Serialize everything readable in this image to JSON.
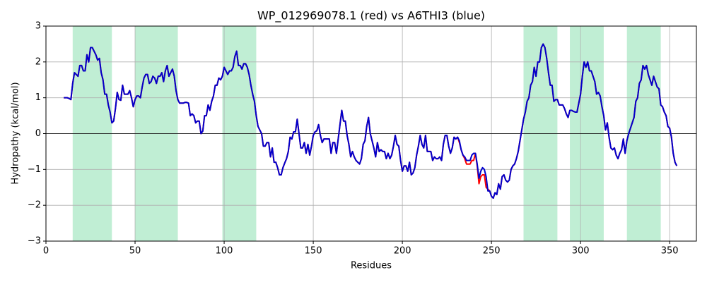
{
  "chart_data": {
    "type": "line",
    "title": "WP_012969078.1 (red) vs A6THI3 (blue)",
    "xlabel": "Residues",
    "ylabel": "Hydropathy (kcal/mol)",
    "xlim": [
      0,
      365
    ],
    "ylim": [
      -3,
      3
    ],
    "xticks": [
      0,
      50,
      100,
      150,
      200,
      250,
      300,
      350
    ],
    "yticks": [
      {
        "value": -3,
        "label": "−3"
      },
      {
        "value": -2,
        "label": "−2"
      },
      {
        "value": -1,
        "label": "−1"
      },
      0,
      1,
      2,
      3
    ],
    "grid": true,
    "hline": 0,
    "shaded_regions": [
      [
        15,
        37
      ],
      [
        50,
        74
      ],
      [
        99,
        118
      ],
      [
        268,
        287
      ],
      [
        294,
        313
      ],
      [
        326,
        345
      ]
    ],
    "shade_color": "#c0eed4",
    "x": [
      10,
      11,
      12,
      13,
      14,
      15,
      16,
      17,
      18,
      19,
      20,
      21,
      22,
      23,
      24,
      25,
      26,
      27,
      28,
      29,
      30,
      31,
      32,
      33,
      34,
      35,
      36,
      37,
      38,
      39,
      40,
      41,
      42,
      43,
      44,
      45,
      46,
      47,
      48,
      49,
      50,
      51,
      52,
      53,
      54,
      55,
      56,
      57,
      58,
      59,
      60,
      61,
      62,
      63,
      64,
      65,
      66,
      67,
      68,
      69,
      70,
      71,
      72,
      73,
      74,
      75,
      76,
      77,
      78,
      79,
      80,
      81,
      82,
      83,
      84,
      85,
      86,
      87,
      88,
      89,
      90,
      91,
      92,
      93,
      94,
      95,
      96,
      97,
      98,
      99,
      100,
      101,
      102,
      103,
      104,
      105,
      106,
      107,
      108,
      109,
      110,
      111,
      112,
      113,
      114,
      115,
      116,
      117,
      118,
      119,
      120,
      121,
      122,
      123,
      124,
      125,
      126,
      127,
      128,
      129,
      130,
      131,
      132,
      133,
      134,
      135,
      136,
      137,
      138,
      139,
      140,
      141,
      142,
      143,
      144,
      145,
      146,
      147,
      148,
      149,
      150,
      151,
      152,
      153,
      154,
      155,
      156,
      157,
      158,
      159,
      160,
      161,
      162,
      163,
      164,
      165,
      166,
      167,
      168,
      169,
      170,
      171,
      172,
      173,
      174,
      175,
      176,
      177,
      178,
      179,
      180,
      181,
      182,
      183,
      184,
      185,
      186,
      187,
      188,
      189,
      190,
      191,
      192,
      193,
      194,
      195,
      196,
      197,
      198,
      199,
      200,
      201,
      202,
      203,
      204,
      205,
      206,
      207,
      208,
      209,
      210,
      211,
      212,
      213,
      214,
      215,
      216,
      217,
      218,
      219,
      220,
      221,
      222,
      223,
      224,
      225,
      226,
      227,
      228,
      229,
      230,
      231,
      232,
      233,
      234,
      235,
      236,
      237,
      238,
      239,
      240,
      241,
      242,
      243,
      244,
      245,
      246,
      247,
      248,
      249,
      250,
      251,
      252,
      253,
      254,
      255,
      256,
      257,
      258,
      259,
      260,
      261,
      262,
      263,
      264,
      265,
      266,
      267,
      268,
      269,
      270,
      271,
      272,
      273,
      274,
      275,
      276,
      277,
      278,
      279,
      280,
      281,
      282,
      283,
      284,
      285,
      286,
      287,
      288,
      289,
      290,
      291,
      292,
      293,
      294,
      295,
      296,
      297,
      298,
      299,
      300,
      301,
      302,
      303,
      304,
      305,
      306,
      307,
      308,
      309,
      310,
      311,
      312,
      313,
      314,
      315,
      316,
      317,
      318,
      319,
      320,
      321,
      322,
      323,
      324,
      325,
      326,
      327,
      328,
      329,
      330,
      331,
      332,
      333,
      334,
      335,
      336,
      337,
      338,
      339,
      340,
      341,
      342,
      343,
      344,
      345,
      346,
      347,
      348,
      349,
      350,
      351,
      352,
      353,
      354
    ],
    "series": [
      {
        "color": "#ff0000",
        "values": [
          1.0,
          1.0,
          1.0,
          0.98,
          0.95,
          1.4,
          1.7,
          1.65,
          1.6,
          1.9,
          1.9,
          1.75,
          1.75,
          2.2,
          2.0,
          2.4,
          2.4,
          2.3,
          2.2,
          2.05,
          2.1,
          1.7,
          1.5,
          1.1,
          1.1,
          0.8,
          0.6,
          0.3,
          0.35,
          0.7,
          1.15,
          0.95,
          0.93,
          1.35,
          1.1,
          1.1,
          1.1,
          1.2,
          1.0,
          0.75,
          0.95,
          1.05,
          1.05,
          1.0,
          1.3,
          1.55,
          1.65,
          1.65,
          1.4,
          1.45,
          1.6,
          1.55,
          1.4,
          1.6,
          1.6,
          1.7,
          1.45,
          1.75,
          1.9,
          1.6,
          1.7,
          1.8,
          1.6,
          1.2,
          0.95,
          0.85,
          0.85,
          0.85,
          0.87,
          0.87,
          0.85,
          0.5,
          0.55,
          0.5,
          0.3,
          0.35,
          0.35,
          0.0,
          0.07,
          0.5,
          0.5,
          0.8,
          0.65,
          0.9,
          1.05,
          1.35,
          1.35,
          1.55,
          1.5,
          1.6,
          1.85,
          1.75,
          1.65,
          1.75,
          1.75,
          1.85,
          2.15,
          2.3,
          1.9,
          1.9,
          1.8,
          1.95,
          1.95,
          1.85,
          1.65,
          1.35,
          1.1,
          0.9,
          0.5,
          0.2,
          0.1,
          0.0,
          -0.35,
          -0.35,
          -0.25,
          -0.25,
          -0.65,
          -0.4,
          -0.8,
          -0.8,
          -0.95,
          -1.15,
          -1.15,
          -0.95,
          -0.82,
          -0.7,
          -0.5,
          -0.1,
          -0.15,
          0.05,
          0.05,
          0.4,
          0.0,
          -0.4,
          -0.4,
          -0.25,
          -0.55,
          -0.3,
          -0.6,
          -0.35,
          -0.05,
          0.05,
          0.08,
          0.25,
          -0.05,
          -0.25,
          -0.15,
          -0.15,
          -0.15,
          -0.15,
          -0.55,
          -0.25,
          -0.25,
          -0.55,
          -0.15,
          0.25,
          0.65,
          0.35,
          0.35,
          -0.05,
          -0.3,
          -0.65,
          -0.5,
          -0.65,
          -0.75,
          -0.8,
          -0.85,
          -0.7,
          -0.3,
          -0.2,
          0.2,
          0.45,
          0.0,
          -0.2,
          -0.4,
          -0.65,
          -0.25,
          -0.5,
          -0.45,
          -0.5,
          -0.5,
          -0.7,
          -0.55,
          -0.7,
          -0.6,
          -0.35,
          -0.05,
          -0.3,
          -0.35,
          -0.75,
          -1.05,
          -0.9,
          -0.9,
          -1.05,
          -0.8,
          -1.15,
          -1.1,
          -0.95,
          -0.6,
          -0.35,
          -0.05,
          -0.3,
          -0.4,
          -0.05,
          -0.5,
          -0.5,
          -0.5,
          -0.75,
          -0.65,
          -0.7,
          -0.7,
          -0.65,
          -0.75,
          -0.3,
          -0.05,
          -0.05,
          -0.35,
          -0.55,
          -0.4,
          -0.1,
          -0.15,
          -0.1,
          -0.25,
          -0.45,
          -0.6,
          -0.7,
          -0.85,
          -0.85,
          -0.85,
          -0.75,
          -0.75,
          -0.55,
          -0.9,
          -1.4,
          -1.2,
          -1.15,
          -1.15,
          -1.5,
          -1.55,
          -1.6,
          -1.75,
          -1.8,
          -1.65,
          -1.7,
          -1.4,
          -1.55,
          -1.2,
          -1.15,
          -1.3,
          -1.35,
          -1.3,
          -1.0,
          -0.9,
          -0.85,
          -0.7,
          -0.5,
          -0.2,
          0.1,
          0.4,
          0.6,
          0.9,
          1.0,
          1.35,
          1.45,
          1.85,
          1.6,
          2.0,
          2.0,
          2.4,
          2.5,
          2.4,
          2.1,
          1.7,
          1.35,
          1.35,
          0.9,
          0.95,
          0.95,
          0.8,
          0.8,
          0.8,
          0.7,
          0.55,
          0.45,
          0.65,
          0.65,
          0.62,
          0.6,
          0.6,
          0.85,
          1.1,
          1.6,
          2.0,
          1.85,
          2.0,
          1.75,
          1.75,
          1.6,
          1.45,
          1.1,
          1.15,
          1.05,
          0.75,
          0.5,
          0.1,
          0.3,
          -0.1,
          -0.4,
          -0.45,
          -0.4,
          -0.6,
          -0.7,
          -0.55,
          -0.45,
          -0.15,
          -0.55,
          -0.2,
          0.0,
          0.15,
          0.3,
          0.45,
          0.9,
          1.0,
          1.4,
          1.5,
          1.9,
          1.8,
          1.9,
          1.65,
          1.5,
          1.35,
          1.6,
          1.45,
          1.3,
          1.25,
          0.8,
          0.75,
          0.6,
          0.5,
          0.2,
          0.15,
          -0.1,
          -0.55,
          -0.8,
          -0.9
        ]
      },
      {
        "color": "#0000cc",
        "values": [
          1.0,
          1.0,
          1.0,
          0.98,
          0.95,
          1.4,
          1.7,
          1.65,
          1.6,
          1.9,
          1.9,
          1.75,
          1.75,
          2.2,
          2.0,
          2.4,
          2.4,
          2.3,
          2.2,
          2.05,
          2.1,
          1.7,
          1.5,
          1.1,
          1.1,
          0.8,
          0.6,
          0.3,
          0.35,
          0.7,
          1.15,
          0.95,
          0.93,
          1.35,
          1.1,
          1.1,
          1.1,
          1.2,
          1.0,
          0.75,
          0.95,
          1.05,
          1.05,
          1.0,
          1.3,
          1.55,
          1.65,
          1.65,
          1.4,
          1.45,
          1.6,
          1.55,
          1.4,
          1.6,
          1.6,
          1.7,
          1.45,
          1.75,
          1.9,
          1.6,
          1.7,
          1.8,
          1.6,
          1.2,
          0.95,
          0.85,
          0.85,
          0.85,
          0.87,
          0.87,
          0.85,
          0.5,
          0.55,
          0.5,
          0.3,
          0.35,
          0.35,
          0.0,
          0.07,
          0.5,
          0.5,
          0.8,
          0.65,
          0.9,
          1.05,
          1.35,
          1.35,
          1.55,
          1.5,
          1.6,
          1.85,
          1.75,
          1.65,
          1.75,
          1.75,
          1.85,
          2.15,
          2.3,
          1.9,
          1.9,
          1.8,
          1.95,
          1.95,
          1.85,
          1.65,
          1.35,
          1.1,
          0.9,
          0.5,
          0.2,
          0.1,
          0.0,
          -0.35,
          -0.35,
          -0.25,
          -0.25,
          -0.65,
          -0.4,
          -0.8,
          -0.8,
          -0.95,
          -1.15,
          -1.15,
          -0.95,
          -0.82,
          -0.7,
          -0.5,
          -0.1,
          -0.15,
          0.05,
          0.05,
          0.4,
          0.0,
          -0.4,
          -0.4,
          -0.25,
          -0.55,
          -0.3,
          -0.6,
          -0.35,
          -0.05,
          0.05,
          0.08,
          0.25,
          -0.05,
          -0.25,
          -0.15,
          -0.15,
          -0.15,
          -0.15,
          -0.55,
          -0.25,
          -0.25,
          -0.55,
          -0.15,
          0.25,
          0.65,
          0.35,
          0.35,
          -0.05,
          -0.3,
          -0.65,
          -0.5,
          -0.65,
          -0.75,
          -0.8,
          -0.85,
          -0.7,
          -0.3,
          -0.2,
          0.2,
          0.45,
          0.0,
          -0.2,
          -0.4,
          -0.65,
          -0.25,
          -0.5,
          -0.45,
          -0.5,
          -0.5,
          -0.7,
          -0.55,
          -0.7,
          -0.6,
          -0.35,
          -0.05,
          -0.3,
          -0.35,
          -0.75,
          -1.05,
          -0.9,
          -0.9,
          -1.05,
          -0.8,
          -1.15,
          -1.1,
          -0.95,
          -0.6,
          -0.35,
          -0.05,
          -0.3,
          -0.4,
          -0.05,
          -0.5,
          -0.5,
          -0.5,
          -0.75,
          -0.65,
          -0.7,
          -0.7,
          -0.65,
          -0.75,
          -0.3,
          -0.05,
          -0.05,
          -0.35,
          -0.55,
          -0.4,
          -0.1,
          -0.15,
          -0.1,
          -0.2,
          -0.45,
          -0.6,
          -0.65,
          -0.75,
          -0.75,
          -0.75,
          -0.6,
          -0.55,
          -0.55,
          -0.85,
          -1.25,
          -1.05,
          -0.95,
          -1.0,
          -1.2,
          -1.6,
          -1.6,
          -1.75,
          -1.8,
          -1.65,
          -1.7,
          -1.4,
          -1.55,
          -1.2,
          -1.15,
          -1.3,
          -1.35,
          -1.3,
          -1.0,
          -0.9,
          -0.85,
          -0.7,
          -0.5,
          -0.2,
          0.1,
          0.4,
          0.6,
          0.9,
          1.0,
          1.35,
          1.45,
          1.85,
          1.6,
          2.0,
          2.0,
          2.4,
          2.5,
          2.4,
          2.1,
          1.7,
          1.35,
          1.35,
          0.9,
          0.95,
          0.95,
          0.8,
          0.8,
          0.8,
          0.7,
          0.55,
          0.45,
          0.65,
          0.65,
          0.62,
          0.6,
          0.6,
          0.85,
          1.1,
          1.6,
          2.0,
          1.85,
          2.0,
          1.75,
          1.75,
          1.6,
          1.45,
          1.1,
          1.15,
          1.05,
          0.75,
          0.5,
          0.1,
          0.3,
          -0.1,
          -0.4,
          -0.45,
          -0.4,
          -0.6,
          -0.7,
          -0.55,
          -0.45,
          -0.15,
          -0.55,
          -0.2,
          0.0,
          0.15,
          0.3,
          0.45,
          0.9,
          1.0,
          1.4,
          1.5,
          1.9,
          1.8,
          1.9,
          1.65,
          1.5,
          1.35,
          1.6,
          1.45,
          1.3,
          1.25,
          0.8,
          0.75,
          0.6,
          0.5,
          0.2,
          0.15,
          -0.1,
          -0.55,
          -0.8,
          -0.9
        ]
      }
    ]
  }
}
